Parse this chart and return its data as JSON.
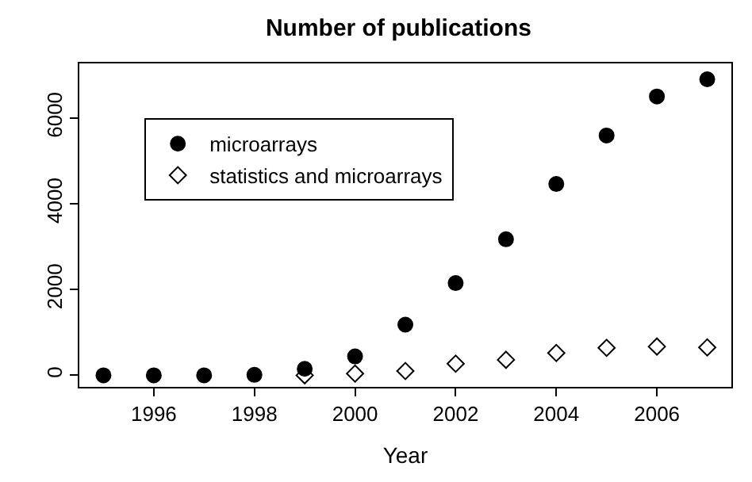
{
  "chart_data": {
    "type": "scatter",
    "title": "Number of publications",
    "xlabel": "Year",
    "x": [
      1995,
      1996,
      1997,
      1998,
      1999,
      2000,
      2001,
      2002,
      2003,
      2004,
      2005,
      2006,
      2007
    ],
    "series": [
      {
        "name": "microarrays",
        "color": "#000000",
        "marker": "circle",
        "values": [
          0,
          0,
          0,
          10,
          150,
          440,
          1180,
          2150,
          3170,
          4460,
          5590,
          6500,
          6900
        ]
      },
      {
        "name": "statistics and microarrays",
        "color": "#000000",
        "marker": "diamond-open",
        "values": [
          null,
          null,
          null,
          null,
          0,
          40,
          100,
          270,
          360,
          520,
          640,
          670,
          650
        ]
      }
    ],
    "xlim": [
      1994.52,
      2007.48
    ],
    "xticks": [
      1996,
      1998,
      2000,
      2002,
      2004,
      2006
    ],
    "ylim": [
      -270,
      7270
    ],
    "yticks": [
      0,
      2000,
      4000,
      6000
    ],
    "legend": "top left"
  }
}
